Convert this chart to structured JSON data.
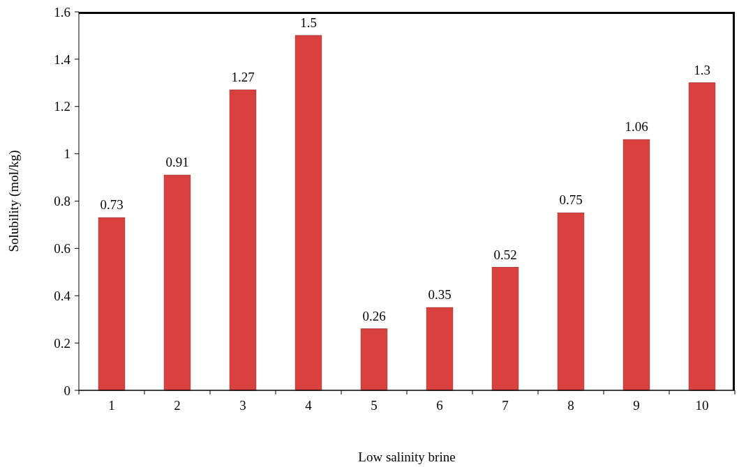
{
  "chart_data": {
    "type": "bar",
    "xlabel": "Low salinity brine",
    "ylabel": "Solubility (mol/kg)",
    "categories": [
      "1",
      "2",
      "3",
      "4",
      "5",
      "6",
      "7",
      "8",
      "9",
      "10"
    ],
    "values": [
      0.73,
      0.91,
      1.27,
      1.5,
      0.26,
      0.35,
      0.52,
      0.75,
      1.06,
      1.3
    ],
    "color": "#d9413f",
    "ylim": [
      0,
      1.6
    ],
    "yticks": [
      0,
      0.2,
      0.4,
      0.6,
      0.8,
      1,
      1.2,
      1.4,
      1.6
    ],
    "data_labels": true,
    "grid": false
  }
}
